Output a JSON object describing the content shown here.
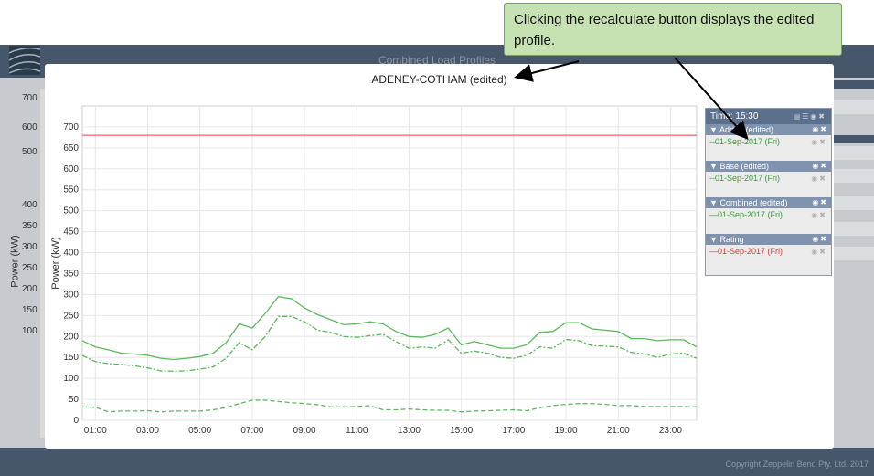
{
  "app": {
    "title": "Combined Load Profiles",
    "copyright": "Copyright Zeppelin Bend Pty. Ltd. 2017"
  },
  "background_chart": {
    "ylabel": "Power (kW)",
    "ticks": [
      "700",
      "600",
      "500",
      "400",
      "350",
      "300",
      "250",
      "200",
      "150",
      "100"
    ]
  },
  "callout": {
    "text": "Clicking the recalculate button displays the edited profile."
  },
  "modal": {
    "title": "ADENEY-COTHAM (edited)"
  },
  "legend": {
    "time_label": "Time: 15:30",
    "groups": [
      {
        "name": "Added (edited)",
        "item": "--01-Sep-2017 (Fri)",
        "color": "#3a9a3a"
      },
      {
        "name": "Base (edited)",
        "item": "--01-Sep-2017 (Fri)",
        "color": "#3a9a3a"
      },
      {
        "name": "Combined (edited)",
        "item": "—01-Sep-2017 (Fri)",
        "color": "#3a9a3a"
      },
      {
        "name": "Rating",
        "item": "—01-Sep-2017 (Fri)",
        "color": "#d43a3a"
      }
    ]
  },
  "chart_data": {
    "type": "line",
    "ylabel": "Power (kW)",
    "ylim": [
      0,
      750
    ],
    "yticks": [
      0,
      50,
      100,
      150,
      200,
      250,
      300,
      350,
      400,
      450,
      500,
      550,
      600,
      650,
      700
    ],
    "xticks": [
      "01:00",
      "03:00",
      "05:00",
      "07:00",
      "09:00",
      "11:00",
      "13:00",
      "15:00",
      "17:00",
      "19:00",
      "21:00",
      "23:00"
    ],
    "x": [
      0.5,
      1,
      1.5,
      2,
      2.5,
      3,
      3.5,
      4,
      4.5,
      5,
      5.5,
      6,
      6.5,
      7,
      7.5,
      8,
      8.5,
      9,
      9.5,
      10,
      10.5,
      11,
      11.5,
      12,
      12.5,
      13,
      13.5,
      14,
      14.5,
      15,
      15.5,
      16,
      16.5,
      17,
      17.5,
      18,
      18.5,
      19,
      19.5,
      20,
      20.5,
      21,
      21.5,
      22,
      22.5,
      23,
      23.5,
      24
    ],
    "series": [
      {
        "name": "Combined (edited)",
        "style": "solid",
        "color": "#5cb85c",
        "values": [
          190,
          175,
          168,
          160,
          158,
          155,
          148,
          145,
          148,
          152,
          160,
          185,
          230,
          220,
          255,
          295,
          290,
          268,
          252,
          240,
          228,
          230,
          235,
          230,
          212,
          200,
          198,
          205,
          220,
          180,
          188,
          180,
          172,
          172,
          180,
          210,
          212,
          233,
          233,
          218,
          215,
          212,
          195,
          195,
          190,
          192,
          192,
          175
        ]
      },
      {
        "name": "Base (edited)",
        "style": "dashdot",
        "color": "#5cb85c",
        "values": [
          155,
          140,
          135,
          133,
          130,
          125,
          118,
          117,
          118,
          122,
          127,
          148,
          185,
          168,
          200,
          248,
          248,
          235,
          215,
          210,
          200,
          198,
          202,
          205,
          188,
          172,
          175,
          172,
          192,
          160,
          165,
          160,
          150,
          148,
          155,
          175,
          172,
          193,
          190,
          178,
          177,
          175,
          162,
          158,
          150,
          158,
          160,
          148
        ]
      },
      {
        "name": "Added (edited)",
        "style": "dashed",
        "color": "#5cb85c",
        "values": [
          32,
          31,
          20,
          22,
          22,
          23,
          20,
          22,
          22,
          22,
          25,
          30,
          40,
          48,
          48,
          45,
          42,
          40,
          37,
          32,
          32,
          33,
          35,
          25,
          25,
          27,
          25,
          24,
          24,
          20,
          22,
          23,
          24,
          25,
          23,
          30,
          35,
          38,
          40,
          40,
          38,
          35,
          35,
          33,
          33,
          33,
          33,
          32
        ]
      }
    ],
    "rating_line": {
      "value": 680,
      "color": "#e04040"
    },
    "grid": true
  }
}
